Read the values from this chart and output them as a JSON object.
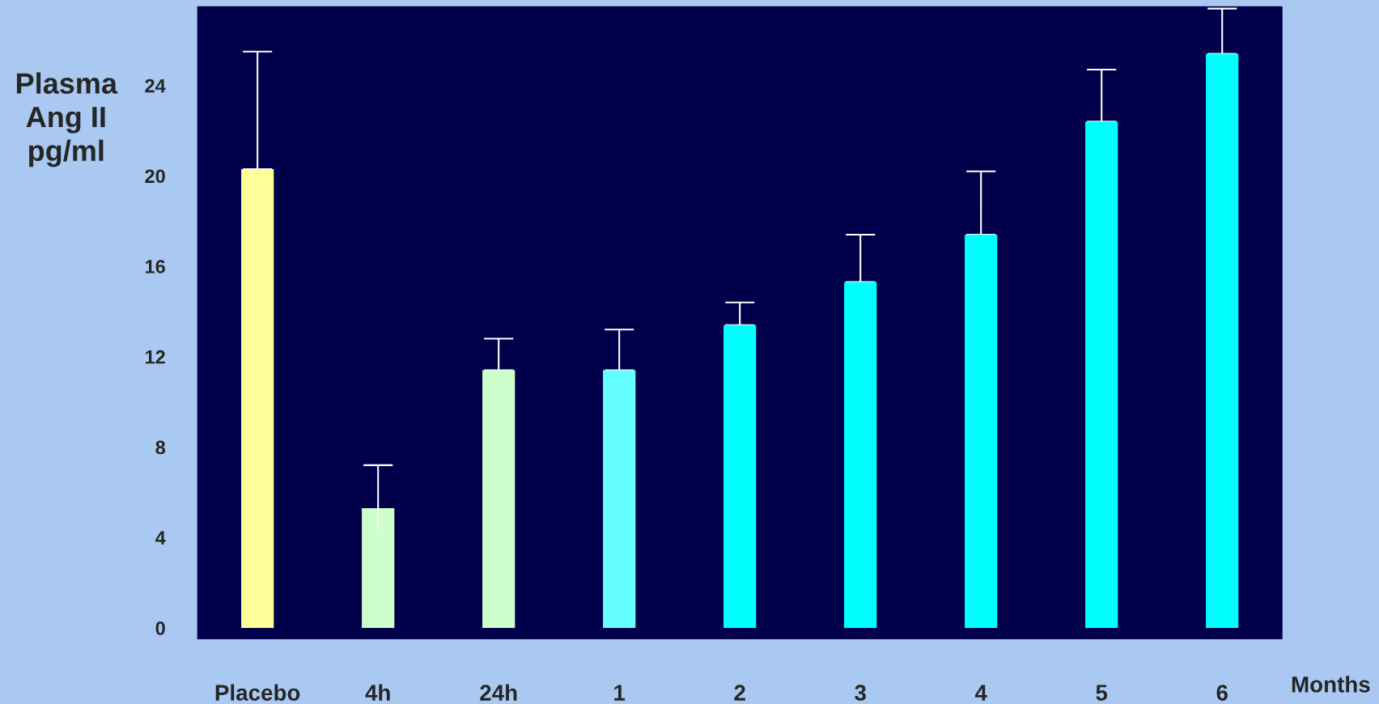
{
  "chart_data": {
    "type": "bar",
    "ylabel": "Plasma\nAng II\npg/ml",
    "xlabel": "Months",
    "categories": [
      "Placebo",
      "4h",
      "24h",
      "1",
      "2",
      "3",
      "4",
      "5",
      "6"
    ],
    "values": [
      20.3,
      5.3,
      11.4,
      11.4,
      13.4,
      15.3,
      17.4,
      22.4,
      25.4
    ],
    "colors": [
      "#ffff99",
      "#ccffcc",
      "#ccffcc",
      "#66ffff",
      "#00ffff",
      "#00ffff",
      "#00ffff",
      "#00ffff",
      "#00ffff"
    ],
    "errors": [
      [
        20.3,
        25.5
      ],
      [
        4.4,
        7.2
      ],
      [
        11.4,
        12.8
      ],
      [
        11.4,
        13.2
      ],
      [
        13.4,
        14.4
      ],
      [
        15.3,
        17.4
      ],
      [
        17.4,
        20.2
      ],
      [
        22.4,
        24.7
      ],
      [
        25.4,
        27.4
      ]
    ],
    "ylim": [
      -0.5,
      27.5
    ],
    "yticks": [
      0,
      4,
      8,
      12,
      16,
      20,
      24
    ],
    "grid": false,
    "legend": false
  }
}
